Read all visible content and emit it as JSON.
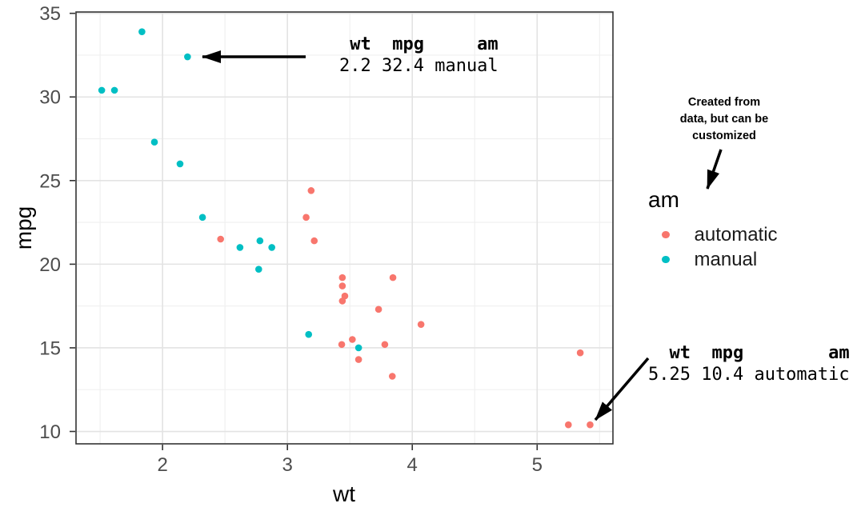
{
  "chart_data": {
    "type": "scatter",
    "xlabel": "wt",
    "ylabel": "mpg",
    "xlim": [
      1.307,
      5.607
    ],
    "ylim": [
      9.26,
      35.08
    ],
    "x_ticks": [
      2,
      3,
      4,
      5
    ],
    "y_ticks": [
      10,
      15,
      20,
      25,
      30,
      35
    ],
    "x_minor_ticks": [
      1.5,
      2.5,
      3.5,
      4.5,
      5.5
    ],
    "y_minor_ticks": [
      12.5,
      17.5,
      22.5,
      27.5,
      32.5
    ],
    "grid": true,
    "colors": {
      "automatic": "#F8766D",
      "manual": "#00BFC4"
    },
    "series": [
      {
        "name": "automatic",
        "color": "#F8766D",
        "points": [
          [
            3.215,
            21.4
          ],
          [
            3.44,
            18.7
          ],
          [
            3.46,
            18.1
          ],
          [
            3.57,
            14.3
          ],
          [
            3.19,
            24.4
          ],
          [
            3.15,
            22.8
          ],
          [
            3.44,
            19.2
          ],
          [
            3.44,
            17.8
          ],
          [
            4.07,
            16.4
          ],
          [
            3.73,
            17.3
          ],
          [
            3.78,
            15.2
          ],
          [
            5.25,
            10.4
          ],
          [
            5.424,
            10.4
          ],
          [
            5.345,
            14.7
          ],
          [
            2.465,
            21.5
          ],
          [
            3.52,
            15.5
          ],
          [
            3.435,
            15.2
          ],
          [
            3.84,
            13.3
          ],
          [
            3.845,
            19.2
          ]
        ]
      },
      {
        "name": "manual",
        "color": "#00BFC4",
        "points": [
          [
            2.62,
            21.0
          ],
          [
            2.875,
            21.0
          ],
          [
            2.32,
            22.8
          ],
          [
            2.2,
            32.4
          ],
          [
            1.615,
            30.4
          ],
          [
            1.835,
            33.9
          ],
          [
            1.935,
            27.3
          ],
          [
            2.14,
            26.0
          ],
          [
            1.513,
            30.4
          ],
          [
            3.17,
            15.8
          ],
          [
            2.77,
            19.7
          ],
          [
            3.57,
            15.0
          ],
          [
            2.78,
            21.4
          ]
        ]
      }
    ],
    "legend": {
      "title": "am",
      "position": "right",
      "entries": [
        {
          "label": "automatic",
          "color": "#F8766D"
        },
        {
          "label": "manual",
          "color": "#00BFC4"
        }
      ]
    },
    "annotations": {
      "top_label": {
        "header": " wt  mpg     am",
        "values": "2.2 32.4 manual"
      },
      "bottom_label": {
        "header": "  wt  mpg        am",
        "values": "5.25 10.4 automatic"
      },
      "note": "Created from\ndata, but can be\ncustomized"
    }
  }
}
